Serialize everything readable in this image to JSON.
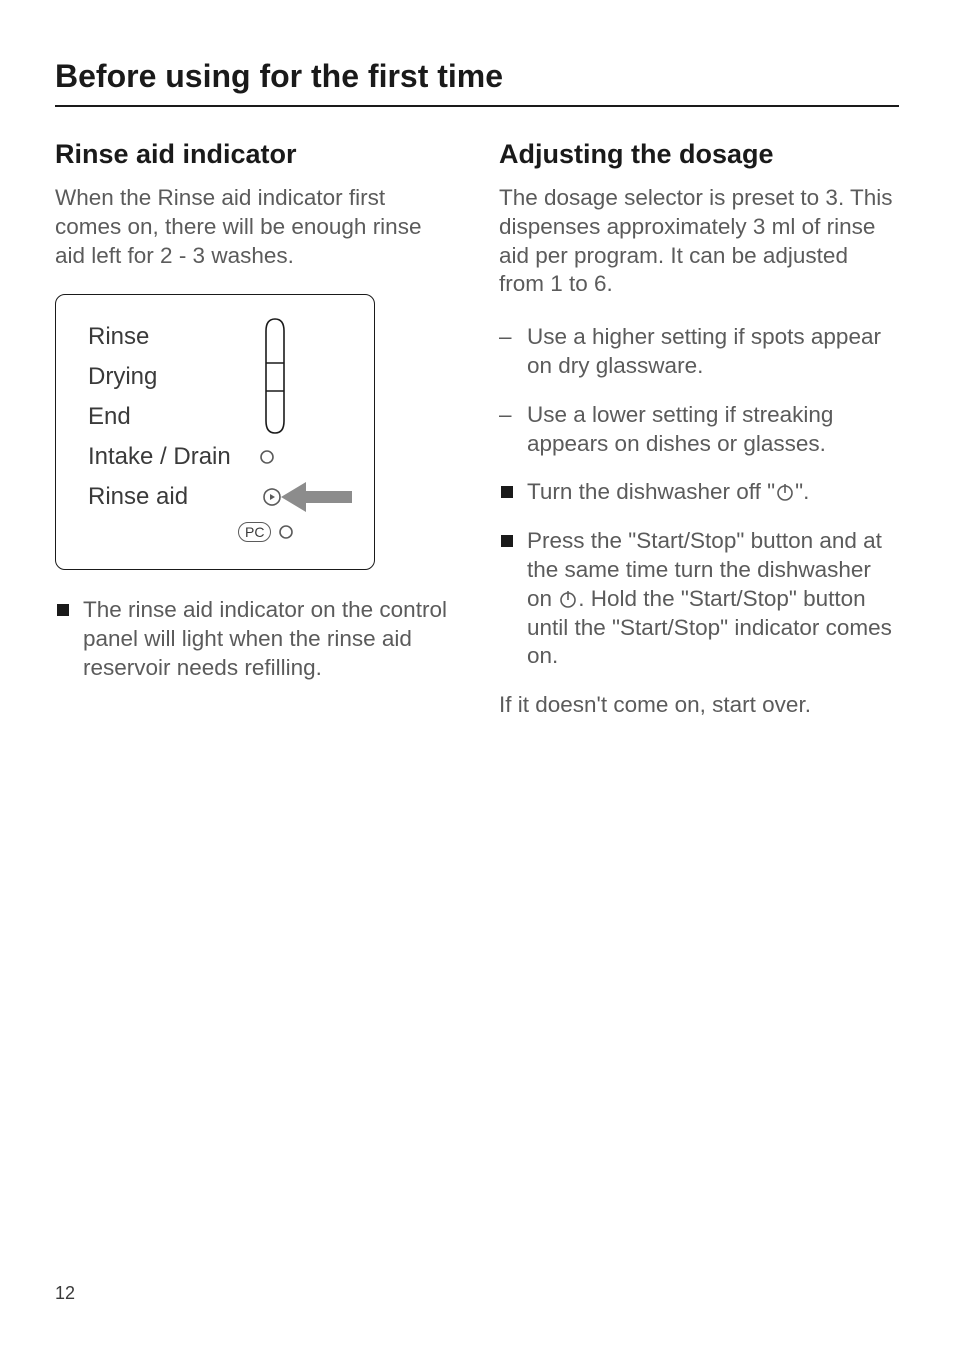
{
  "page": {
    "title": "Before using for the first time",
    "number": "12"
  },
  "left": {
    "heading": "Rinse aid indicator",
    "intro": "When the Rinse aid indicator first comes on, there will be enough rinse aid left for 2 - 3 washes.",
    "diagram": {
      "rows": [
        "Rinse",
        "Drying",
        "End",
        "Intake / Drain",
        "Rinse aid"
      ],
      "pc_label": "PC",
      "stroke": "#1a1a1a",
      "fill_grey": "#8c8c8c",
      "circle_color": "#5b5b5b"
    },
    "bullets": [
      "The rinse aid indicator on the control panel will light when the rinse aid reservoir needs refilling."
    ]
  },
  "right": {
    "heading": "Adjusting the dosage",
    "intro": "The dosage selector is preset to 3. This dispenses approximately 3 ml of rinse aid per program. It can be adjusted from 1 to 6.",
    "dash_items": [
      "Use a higher setting if spots appear on dry glassware.",
      "Use a lower setting if streaking appears on dishes or glasses."
    ],
    "square_items": [
      "Turn the dishwasher off \"{POWER}\".",
      "Press the \"Start/Stop\" button and at the same time turn the dishwasher on {POWER}. Hold the \"Start/Stop\" button until the \"Start/Stop\" indicator comes on."
    ],
    "note": "If it doesn't come on, start over."
  },
  "styles": {
    "text_color": "#5b5b5b",
    "heading_color": "#1a1a1a",
    "body_fontsize": 22.5,
    "heading_fontsize": 27,
    "title_fontsize": 32
  }
}
